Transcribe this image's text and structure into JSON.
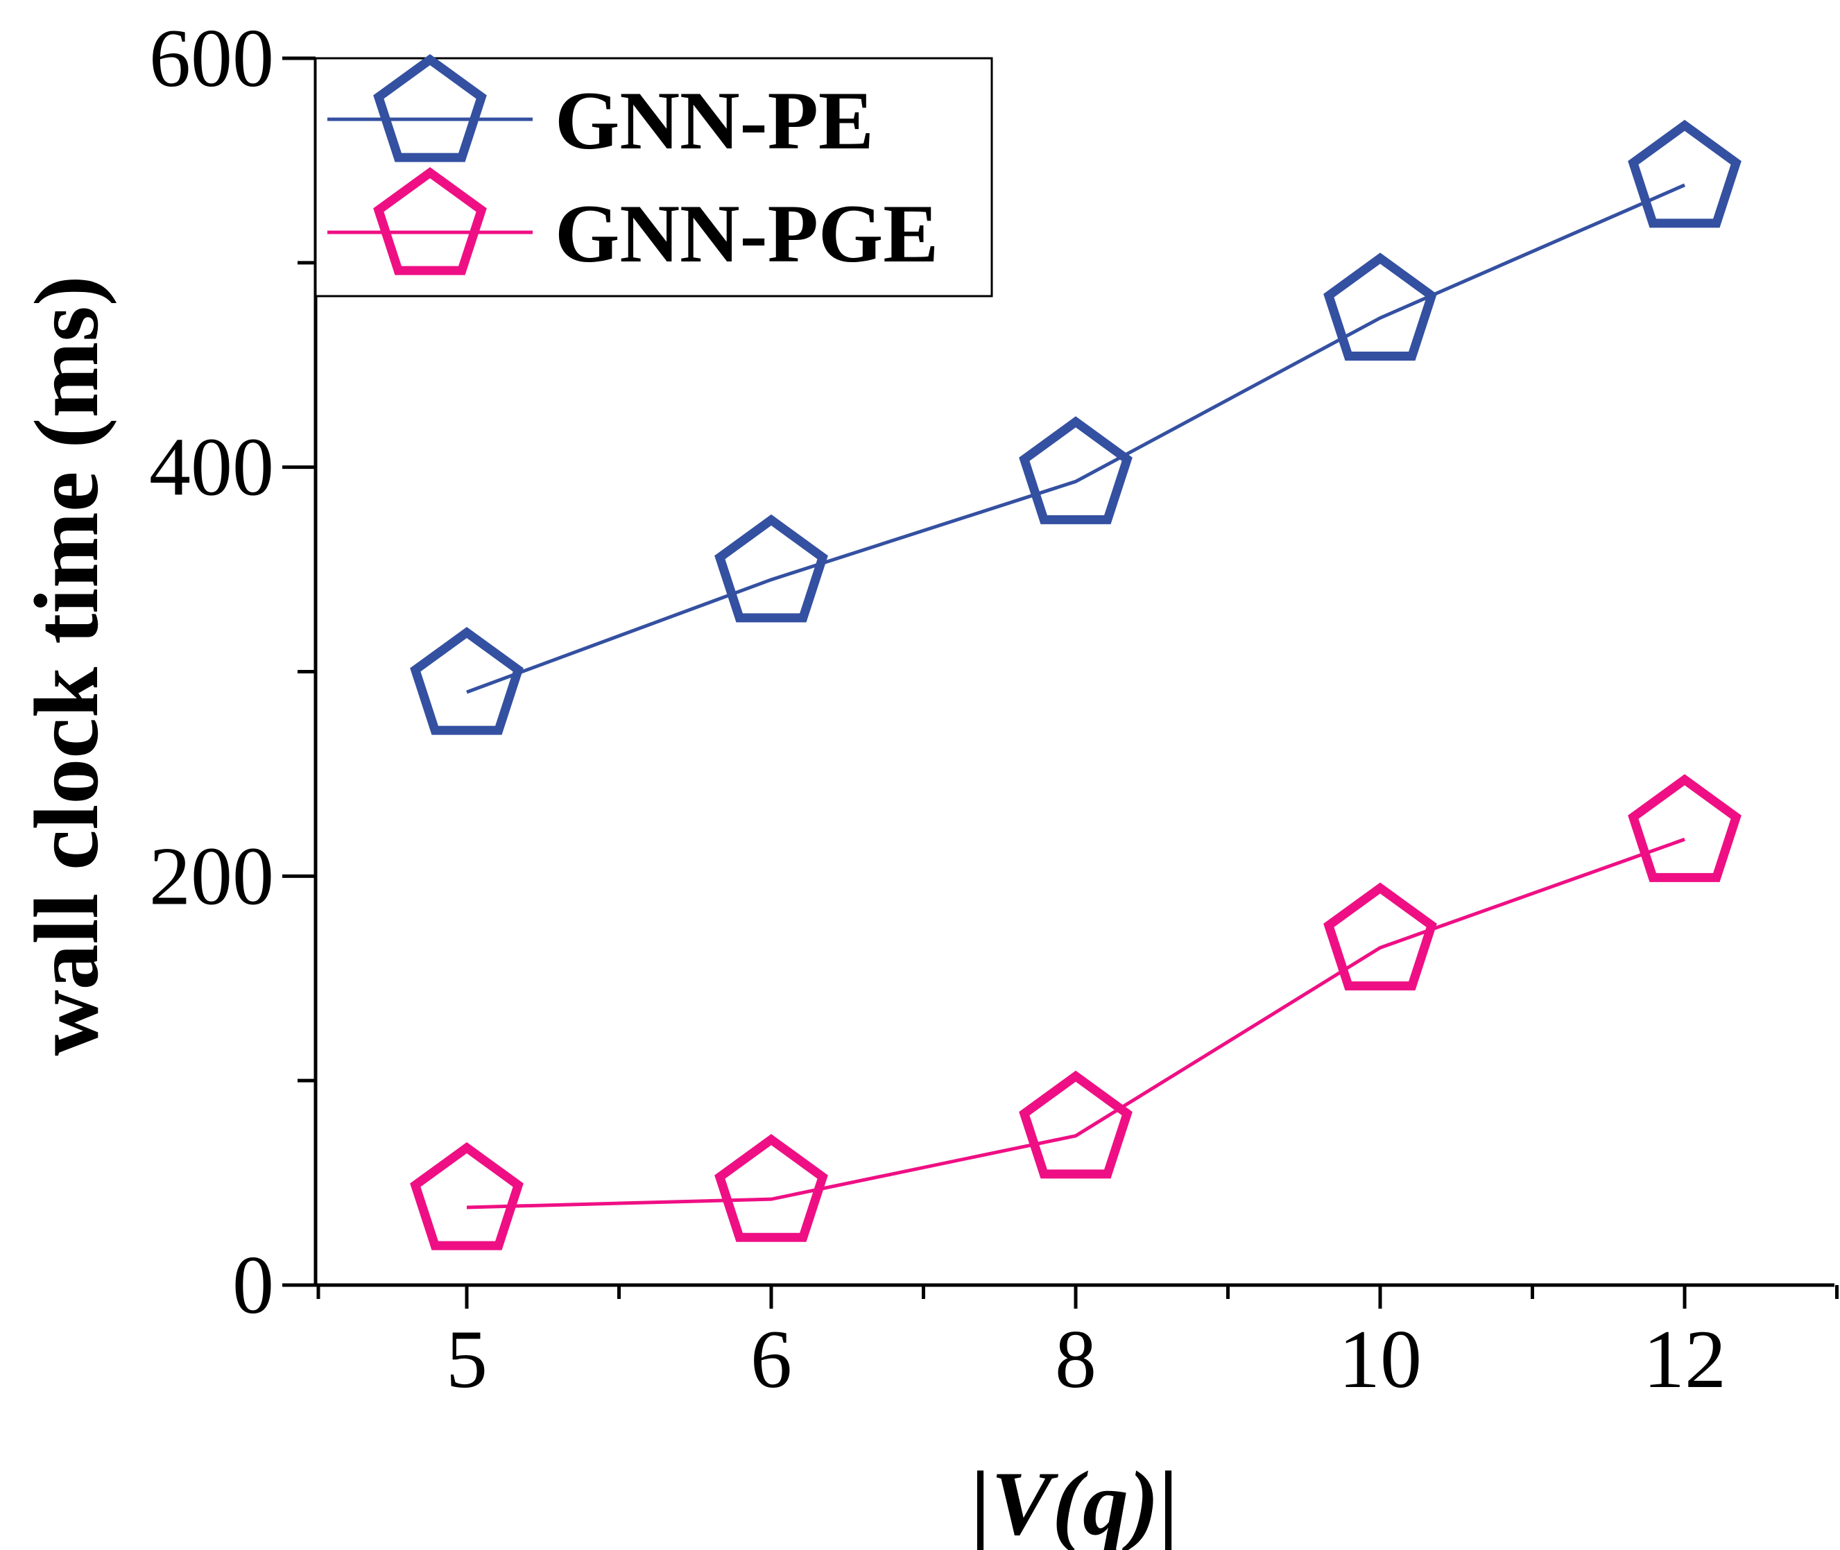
{
  "chart_data": {
    "type": "line",
    "title": "",
    "xlabel": "|V(q)|",
    "ylabel": "wall clock time (ms)",
    "categories": [
      "5",
      "6",
      "8",
      "10",
      "12"
    ],
    "ylim": [
      0,
      600
    ],
    "yticks": [
      0,
      200,
      400,
      600
    ],
    "grid": false,
    "legend_position": "top-left",
    "marker": "pentagon",
    "series": [
      {
        "name": "GNN-PE",
        "color": "#3450a1",
        "values": [
          290,
          345,
          393,
          473,
          538
        ]
      },
      {
        "name": "GNN-PGE",
        "color": "#ef0f84",
        "values": [
          38,
          42,
          73,
          165,
          218
        ]
      }
    ]
  }
}
